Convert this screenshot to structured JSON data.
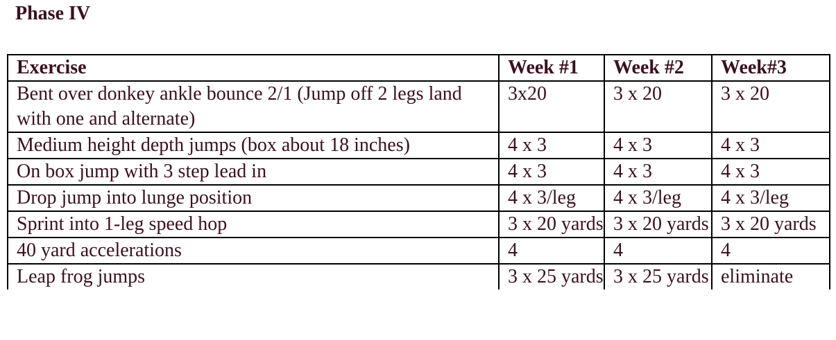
{
  "title": "Phase IV",
  "table": {
    "headers": [
      "Exercise",
      "Week #1",
      "Week #2",
      "Week#3"
    ],
    "rows": [
      {
        "exercise": "Bent over donkey ankle bounce 2/1 (Jump off 2 legs land with one and alternate)",
        "week1": "3x20",
        "week2": "3 x 20",
        "week3": "3 x 20"
      },
      {
        "exercise": "Medium height depth jumps (box about 18 inches)",
        "week1": "4 x 3",
        "week2": "4 x 3",
        "week3": "4 x 3"
      },
      {
        "exercise": "On box jump with 3 step lead in",
        "week1": "4 x 3",
        "week2": "4 x 3",
        "week3": "4 x 3"
      },
      {
        "exercise": "Drop jump into lunge position",
        "week1": "4 x 3/leg",
        "week2": "4 x 3/leg",
        "week3": "4 x 3/leg"
      },
      {
        "exercise": "Sprint into 1-leg speed hop",
        "week1": "3 x 20 yards",
        "week2": "3 x 20 yards",
        "week3": "3 x 20 yards"
      },
      {
        "exercise": "40 yard accelerations",
        "week1": "4",
        "week2": "4",
        "week3": "4"
      },
      {
        "exercise": "Leap frog jumps",
        "week1": "3 x 25 yards",
        "week2": "3 x 25 yards",
        "week3": "eliminate"
      }
    ]
  }
}
